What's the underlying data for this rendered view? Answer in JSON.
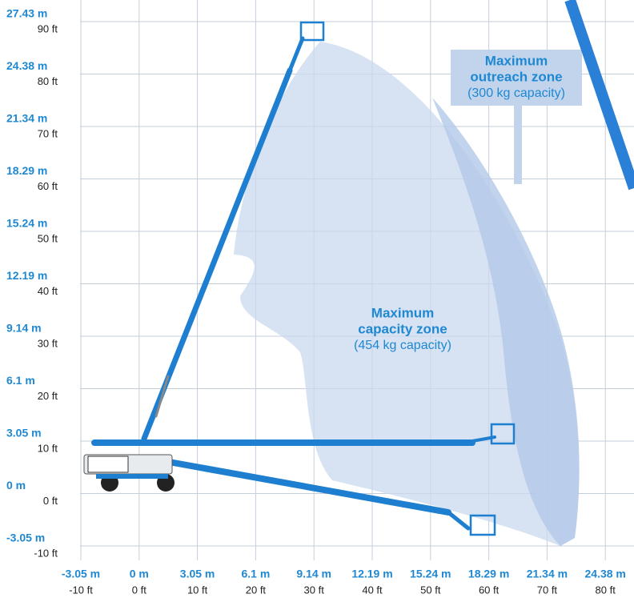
{
  "y_axis": [
    {
      "m": "27.43 m",
      "ft": "90 ft"
    },
    {
      "m": "24.38 m",
      "ft": "80 ft"
    },
    {
      "m": "21.34 m",
      "ft": "70 ft"
    },
    {
      "m": "18.29 m",
      "ft": "60 ft"
    },
    {
      "m": "15.24 m",
      "ft": "50 ft"
    },
    {
      "m": "12.19 m",
      "ft": "40 ft"
    },
    {
      "m": "9.14 m",
      "ft": "30 ft"
    },
    {
      "m": "6.1 m",
      "ft": "20 ft"
    },
    {
      "m": "3.05 m",
      "ft": "10 ft"
    },
    {
      "m": "0 m",
      "ft": "0 ft"
    },
    {
      "m": "-3.05 m",
      "ft": "-10 ft"
    }
  ],
  "x_axis": [
    {
      "m": "-3.05 m",
      "ft": "-10 ft"
    },
    {
      "m": "0 m",
      "ft": "0 ft"
    },
    {
      "m": "3.05 m",
      "ft": "10 ft"
    },
    {
      "m": "6.1 m",
      "ft": "20 ft"
    },
    {
      "m": "9.14 m",
      "ft": "30 ft"
    },
    {
      "m": "12.19 m",
      "ft": "40 ft"
    },
    {
      "m": "15.24 m",
      "ft": "50 ft"
    },
    {
      "m": "18.29 m",
      "ft": "60 ft"
    },
    {
      "m": "21.34 m",
      "ft": "70 ft"
    },
    {
      "m": "24.38 m",
      "ft": "80 ft"
    }
  ],
  "zones": {
    "outreach": {
      "title_lines": [
        "Maximum",
        "outreach zone"
      ],
      "capacity": "(300 kg capacity)"
    },
    "capacity": {
      "title_lines": [
        "Maximum",
        "capacity zone"
      ],
      "capacity": "(454 kg capacity)"
    }
  }
}
